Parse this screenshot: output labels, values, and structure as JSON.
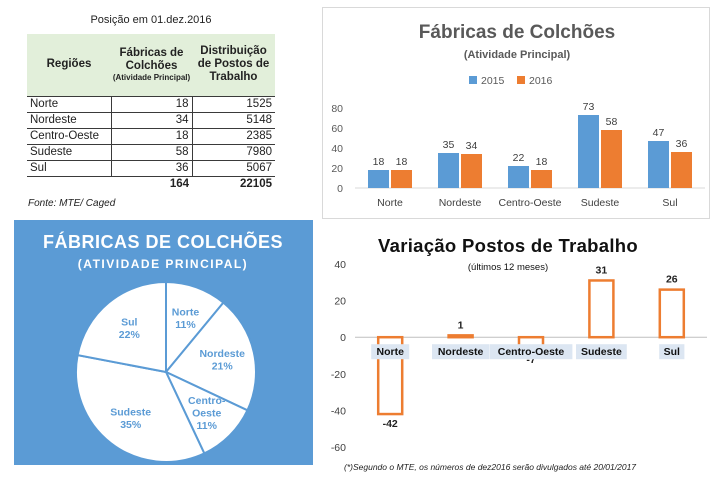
{
  "table": {
    "caption": "Posição em 01.dez.2016",
    "headers": {
      "regioes": "Regiões",
      "fabricas": "Fábricas de Colchões",
      "fabricas_sub": "(Atividade Principal)",
      "distribuicao": "Distribuição de Postos de Trabalho"
    },
    "rows": [
      {
        "region": "Norte",
        "fabricas": "18",
        "postos": "1525"
      },
      {
        "region": "Nordeste",
        "fabricas": "34",
        "postos": "5148"
      },
      {
        "region": "Centro-Oeste",
        "fabricas": "18",
        "postos": "2385"
      },
      {
        "region": "Sudeste",
        "fabricas": "58",
        "postos": "7980"
      },
      {
        "region": "Sul",
        "fabricas": "36",
        "postos": "5067"
      }
    ],
    "totals": {
      "fabricas": "164",
      "postos": "22105"
    },
    "source": "Fonte: MTE/ Caged"
  },
  "chart_data": [
    {
      "type": "bar",
      "title": "Fábricas de Colchões",
      "subtitle": "(Atividade Principal)",
      "categories": [
        "Norte",
        "Nordeste",
        "Centro-Oeste",
        "Sudeste",
        "Sul"
      ],
      "series": [
        {
          "name": "2015",
          "values": [
            18,
            35,
            22,
            73,
            47
          ],
          "color": "#5b9bd5"
        },
        {
          "name": "2016",
          "values": [
            18,
            34,
            18,
            58,
            36
          ],
          "color": "#ed7d31"
        }
      ],
      "ylim": [
        0,
        80
      ],
      "yticks": [
        0,
        20,
        40,
        60,
        80
      ],
      "legend": "top",
      "grid": false
    },
    {
      "type": "pie",
      "title": "FÁBRICAS DE COLCHÕES",
      "subtitle": "(ATIVIDADE PRINCIPAL)",
      "slices": [
        {
          "label": "Norte",
          "percent": 11,
          "display": "11%"
        },
        {
          "label": "Nordeste",
          "percent": 21,
          "display": "21%"
        },
        {
          "label": "Centro-Oeste",
          "label_lines": [
            "Centro-",
            "Oeste"
          ],
          "percent": 11,
          "display": "11%"
        },
        {
          "label": "Sudeste",
          "percent": 35,
          "display": "35%"
        },
        {
          "label": "Sul",
          "percent": 22,
          "display": "22%"
        }
      ],
      "slice_fill": "#ffffff",
      "border_color": "#5b9bd5",
      "label_color": "#5b9bd5"
    },
    {
      "type": "bar",
      "title": "Variação Postos de Trabalho",
      "subtitle": "(últimos 12 meses)",
      "categories": [
        "Norte",
        "Nordeste",
        "Centro-Oeste",
        "Sudeste",
        "Sul"
      ],
      "values": [
        -42,
        1,
        -7,
        31,
        26
      ],
      "labels": [
        "-42",
        "1",
        "-7",
        "31",
        "26"
      ],
      "ylim": [
        -60,
        40
      ],
      "yticks": [
        -60,
        -40,
        -20,
        0,
        20,
        40
      ],
      "bar_style": "outline",
      "color": "#ed7d31",
      "category_label_bg": "#dce6f2",
      "grid": false
    }
  ],
  "footnote": "(*)Segundo o MTE, os números de dez2016 serão divulgados até 20/01/2017"
}
